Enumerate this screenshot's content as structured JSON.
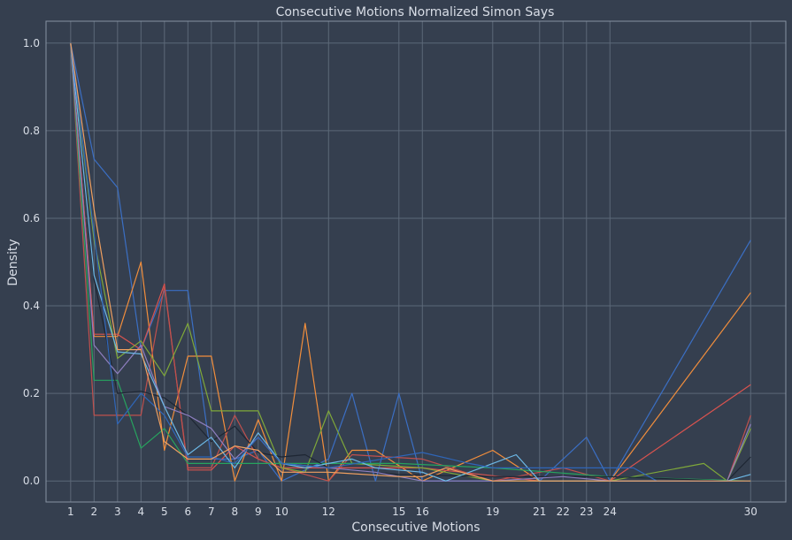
{
  "chart_data": {
    "type": "line",
    "title": "Consecutive Motions Normalized Simon Says",
    "xlabel": "Consecutive Motions",
    "ylabel": "Density",
    "xlim": [
      -0.05,
      31.5
    ],
    "ylim": [
      -0.048,
      1.05
    ],
    "xticks": [
      1,
      2,
      3,
      4,
      5,
      6,
      7,
      8,
      9,
      10,
      12,
      15,
      16,
      19,
      21,
      22,
      23,
      24,
      30
    ],
    "yticks": [
      0.0,
      0.2,
      0.4,
      0.6,
      0.8,
      1.0
    ],
    "ytick_labels": [
      "0.0",
      "0.2",
      "0.4",
      "0.6",
      "0.8",
      "1.0"
    ],
    "grid": true,
    "series": [
      {
        "color": "#3b6fc4",
        "points": [
          [
            1,
            1.0
          ],
          [
            2,
            0.735
          ],
          [
            3,
            0.67
          ],
          [
            4,
            0.3
          ],
          [
            5,
            0.435
          ],
          [
            6,
            0.435
          ],
          [
            7,
            0.05
          ],
          [
            8,
            0.05
          ],
          [
            9,
            0.07
          ],
          [
            10,
            0.0
          ],
          [
            12,
            0.05
          ],
          [
            13,
            0.2
          ],
          [
            14,
            0.0
          ],
          [
            15,
            0.2
          ],
          [
            16,
            0.0
          ],
          [
            17,
            0.0
          ],
          [
            19,
            0.0
          ],
          [
            21,
            0.0
          ],
          [
            23,
            0.1
          ],
          [
            24,
            0.0
          ],
          [
            30,
            0.55
          ]
        ]
      },
      {
        "color": "#f28e3c",
        "points": [
          [
            1,
            1.0
          ],
          [
            2,
            0.33
          ],
          [
            3,
            0.33
          ],
          [
            4,
            0.5
          ],
          [
            5,
            0.07
          ],
          [
            6,
            0.285
          ],
          [
            7,
            0.285
          ],
          [
            8,
            0.0
          ],
          [
            9,
            0.14
          ],
          [
            10,
            0.0
          ],
          [
            11,
            0.36
          ],
          [
            12,
            0.0
          ],
          [
            13,
            0.07
          ],
          [
            14,
            0.07
          ],
          [
            16,
            0.0
          ],
          [
            19,
            0.07
          ],
          [
            21,
            0.0
          ],
          [
            24,
            0.0
          ],
          [
            30,
            0.43
          ]
        ]
      },
      {
        "color": "#d9534f",
        "points": [
          [
            1,
            1.0
          ],
          [
            2,
            0.335
          ],
          [
            3,
            0.335
          ],
          [
            4,
            0.3
          ],
          [
            5,
            0.45
          ],
          [
            6,
            0.025
          ],
          [
            7,
            0.025
          ],
          [
            8,
            0.08
          ],
          [
            9,
            0.05
          ],
          [
            10,
            0.03
          ],
          [
            12,
            0.03
          ],
          [
            15,
            0.03
          ],
          [
            16,
            0.03
          ],
          [
            21,
            0.0
          ],
          [
            24,
            0.0
          ],
          [
            30,
            0.22
          ]
        ]
      },
      {
        "color": "#c0504d",
        "points": [
          [
            1,
            1.0
          ],
          [
            2,
            0.15
          ],
          [
            3,
            0.15
          ],
          [
            4,
            0.15
          ],
          [
            5,
            0.445
          ],
          [
            6,
            0.03
          ],
          [
            7,
            0.03
          ],
          [
            8,
            0.15
          ],
          [
            9,
            0.05
          ],
          [
            10,
            0.03
          ],
          [
            12,
            0.0
          ],
          [
            13,
            0.06
          ],
          [
            16,
            0.05
          ],
          [
            19,
            0.0
          ],
          [
            22,
            0.03
          ],
          [
            24,
            0.0
          ],
          [
            29,
            0.0
          ],
          [
            30,
            0.15
          ]
        ]
      },
      {
        "color": "#7fa83a",
        "points": [
          [
            1,
            1.0
          ],
          [
            2,
            0.55
          ],
          [
            3,
            0.28
          ],
          [
            4,
            0.32
          ],
          [
            5,
            0.24
          ],
          [
            6,
            0.36
          ],
          [
            7,
            0.16
          ],
          [
            8,
            0.16
          ],
          [
            9,
            0.16
          ],
          [
            10,
            0.03
          ],
          [
            11,
            0.02
          ],
          [
            12,
            0.16
          ],
          [
            13,
            0.04
          ],
          [
            16,
            0.03
          ],
          [
            19,
            0.0
          ],
          [
            24,
            0.0
          ],
          [
            28,
            0.04
          ],
          [
            29,
            0.0
          ],
          [
            30,
            0.12
          ]
        ]
      },
      {
        "color": "#27a35e",
        "points": [
          [
            1,
            1.0
          ],
          [
            2,
            0.23
          ],
          [
            3,
            0.23
          ],
          [
            4,
            0.075
          ],
          [
            5,
            0.12
          ],
          [
            6,
            0.04
          ],
          [
            7,
            0.04
          ],
          [
            8,
            0.04
          ],
          [
            9,
            0.04
          ],
          [
            10,
            0.04
          ],
          [
            12,
            0.04
          ],
          [
            15,
            0.04
          ],
          [
            19,
            0.03
          ],
          [
            24,
            0.01
          ],
          [
            30,
            0.0
          ]
        ]
      },
      {
        "color": "#1e2633",
        "points": [
          [
            1,
            1.0
          ],
          [
            2,
            0.46
          ],
          [
            3,
            0.2
          ],
          [
            4,
            0.205
          ],
          [
            5,
            0.19
          ],
          [
            6,
            0.15
          ],
          [
            7,
            0.09
          ],
          [
            8,
            0.125
          ],
          [
            9,
            0.065
          ],
          [
            10,
            0.055
          ],
          [
            11,
            0.06
          ],
          [
            12,
            0.03
          ],
          [
            15,
            0.015
          ],
          [
            19,
            0.01
          ],
          [
            24,
            0.01
          ],
          [
            29,
            0.0
          ],
          [
            30,
            0.055
          ]
        ]
      },
      {
        "color": "#8f7fc0",
        "points": [
          [
            1,
            1.0
          ],
          [
            2,
            0.31
          ],
          [
            3,
            0.245
          ],
          [
            4,
            0.31
          ],
          [
            5,
            0.17
          ],
          [
            6,
            0.15
          ],
          [
            7,
            0.12
          ],
          [
            8,
            0.05
          ],
          [
            9,
            0.1
          ],
          [
            10,
            0.04
          ],
          [
            12,
            0.03
          ],
          [
            14,
            0.02
          ],
          [
            16,
            0.0
          ],
          [
            19,
            0.0
          ],
          [
            22,
            0.01
          ],
          [
            24,
            0.0
          ],
          [
            29,
            0.0
          ],
          [
            30,
            0.13
          ]
        ]
      },
      {
        "color": "#6cb8e6",
        "points": [
          [
            1,
            1.0
          ],
          [
            2,
            0.47
          ],
          [
            3,
            0.295
          ],
          [
            4,
            0.29
          ],
          [
            5,
            0.17
          ],
          [
            6,
            0.06
          ],
          [
            7,
            0.1
          ],
          [
            8,
            0.03
          ],
          [
            9,
            0.11
          ],
          [
            10,
            0.04
          ],
          [
            11,
            0.03
          ],
          [
            13,
            0.05
          ],
          [
            14,
            0.03
          ],
          [
            16,
            0.02
          ],
          [
            17,
            0.0
          ],
          [
            19,
            0.04
          ],
          [
            20,
            0.06
          ],
          [
            21,
            0.0
          ],
          [
            24,
            0.0
          ],
          [
            29,
            0.0
          ],
          [
            30,
            0.015
          ]
        ]
      },
      {
        "color": "#2f66b8",
        "points": [
          [
            1,
            1.0
          ],
          [
            3,
            0.13
          ],
          [
            4,
            0.2
          ],
          [
            5,
            0.15
          ],
          [
            6,
            0.055
          ],
          [
            7,
            0.055
          ],
          [
            8,
            0.04
          ],
          [
            9,
            0.1
          ],
          [
            10,
            0.04
          ],
          [
            12,
            0.03
          ],
          [
            16,
            0.065
          ],
          [
            18,
            0.04
          ],
          [
            19,
            0.03
          ],
          [
            20,
            0.03
          ],
          [
            22,
            0.03
          ],
          [
            24,
            0.03
          ],
          [
            25,
            0.03
          ],
          [
            26,
            0.0
          ],
          [
            30,
            0.0
          ]
        ]
      },
      {
        "color": "#f0a060",
        "points": [
          [
            1,
            1.0
          ],
          [
            2,
            0.62
          ],
          [
            3,
            0.3
          ],
          [
            4,
            0.3
          ],
          [
            5,
            0.09
          ],
          [
            6,
            0.05
          ],
          [
            7,
            0.05
          ],
          [
            8,
            0.08
          ],
          [
            9,
            0.07
          ],
          [
            10,
            0.02
          ],
          [
            12,
            0.02
          ],
          [
            15,
            0.01
          ],
          [
            16,
            0.01
          ],
          [
            17,
            0.03
          ],
          [
            19,
            0.0
          ],
          [
            24,
            0.0
          ],
          [
            30,
            0.0
          ]
        ]
      }
    ]
  }
}
